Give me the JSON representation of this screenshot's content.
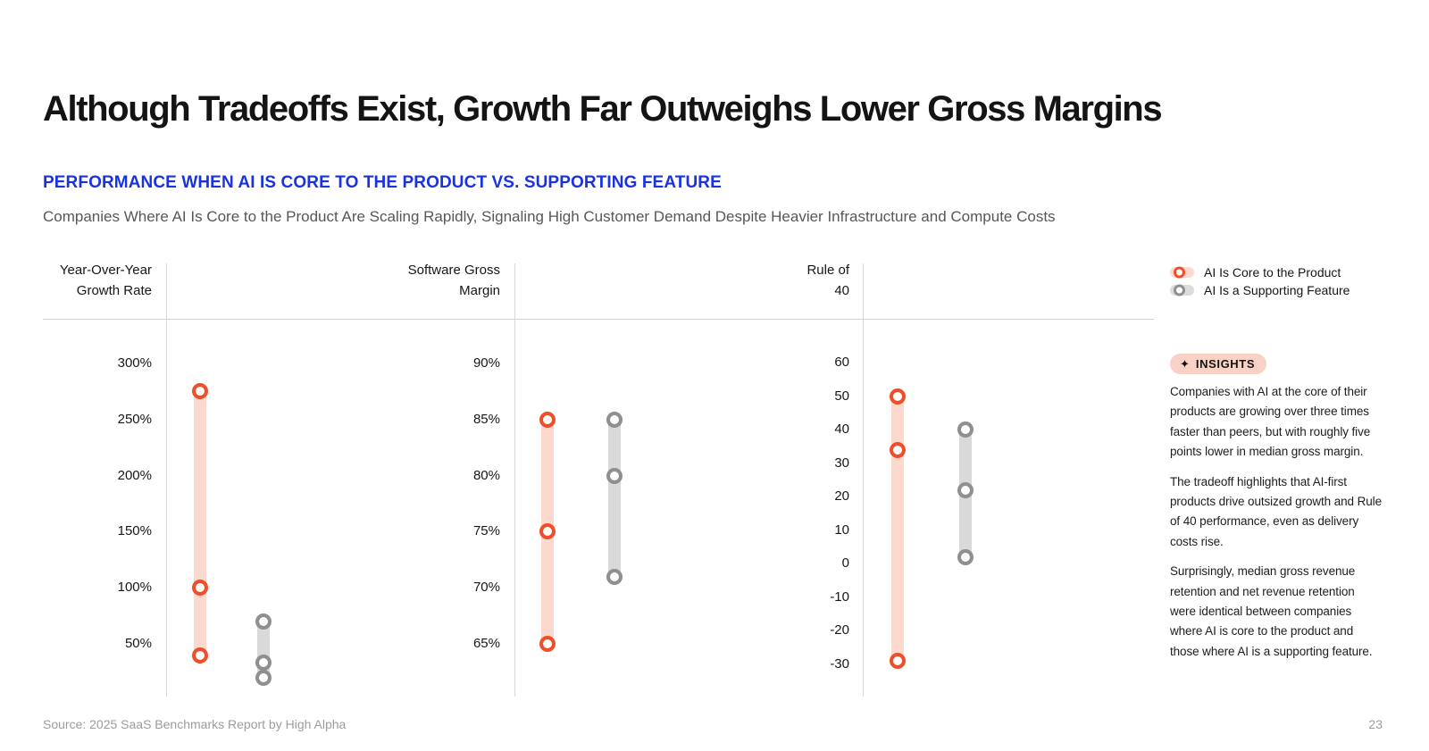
{
  "slide": {
    "title": "Although Tradeoffs Exist, Growth Far Outweighs Lower Gross Margins",
    "section_heading": "PERFORMANCE WHEN AI IS CORE TO THE PRODUCT VS. SUPPORTING FEATURE",
    "description": "Companies Where AI Is Core to the Product Are Scaling Rapidly, Signaling High Customer Demand Despite Heavier Infrastructure and Compute Costs",
    "source": "Source: 2025 SaaS Benchmarks Report by High Alpha",
    "page_number": "23"
  },
  "insights": {
    "badge_icon": "sparkle-icon",
    "badge_icon_glyph": "✦",
    "badge_label": "INSIGHTS",
    "paragraphs": [
      "Companies with AI at the core of their products are growing over three times faster than peers, but with roughly five points lower in median gross margin.",
      "The tradeoff highlights that AI-first products drive outsized growth and Rule of 40 performance, even as delivery costs rise.",
      "Surprisingly, median gross revenue retention and net revenue retention were identical between companies where AI is core to the product and those where AI is a supporting feature."
    ]
  },
  "chart_data": {
    "type": "scatter",
    "subtype": "quartile-range-dot-columns",
    "point_meaning": [
      "top quartile",
      "median",
      "bottom quartile"
    ],
    "grid": false,
    "legend_position": "top-right",
    "series": [
      {
        "name": "AI Is Core to the Product",
        "color": "#f04e2a",
        "range_color": "#fbd9cf"
      },
      {
        "name": "AI Is a Supporting Feature",
        "color": "#8f8f8f",
        "range_color": "#d9d9d9"
      }
    ],
    "panels": [
      {
        "title_lines": [
          "Year-Over-Year",
          "Growth Rate"
        ],
        "ticks": [
          300,
          250,
          200,
          150,
          100,
          50
        ],
        "tick_suffix": "%",
        "axis_range": [
          25,
          325
        ],
        "values": {
          "core": [
            275,
            100,
            40
          ],
          "supporting": [
            70,
            33,
            20
          ]
        }
      },
      {
        "title_lines": [
          "Software Gross",
          "Margin"
        ],
        "ticks": [
          90,
          85,
          80,
          75,
          70,
          65
        ],
        "tick_suffix": "%",
        "axis_range": [
          62.5,
          92.5
        ],
        "values": {
          "core": [
            85,
            75,
            65
          ],
          "supporting": [
            85,
            80,
            71
          ]
        }
      },
      {
        "title_lines": [
          "Rule of",
          "40"
        ],
        "ticks": [
          60,
          50,
          40,
          30,
          20,
          10,
          0,
          -10,
          -20,
          -30
        ],
        "tick_suffix": "",
        "axis_range": [
          -35,
          65
        ],
        "values": {
          "core": [
            50,
            34,
            -29
          ],
          "supporting": [
            40,
            22,
            2
          ]
        }
      }
    ]
  }
}
